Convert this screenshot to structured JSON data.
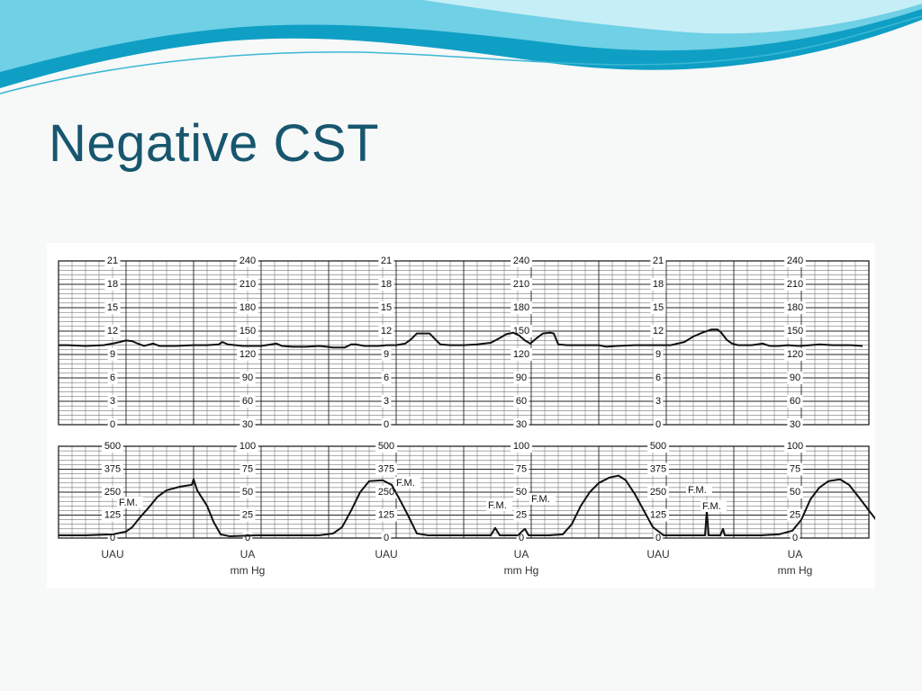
{
  "slide": {
    "title": "Negative CST",
    "accent_color": "#17566e",
    "background_color": "#f7f8f8",
    "wave_colors": [
      "#0f9fc4",
      "#6fd0e6",
      "#c6eef6"
    ]
  },
  "chart_data": {
    "type": "line",
    "fhr_panel": {
      "scale_sets": [
        {
          "left": [
            "21",
            "18",
            "15",
            "12",
            "9",
            "6",
            "3",
            "0"
          ],
          "right": [
            "240",
            "210",
            "180",
            "150",
            "120",
            "90",
            "60",
            "30"
          ]
        },
        {
          "left": [
            "21",
            "18",
            "15",
            "12",
            "9",
            "6",
            "3",
            "0"
          ],
          "right": [
            "240",
            "210",
            "180",
            "150",
            "120",
            "90",
            "60",
            "30"
          ]
        },
        {
          "left": [
            "21",
            "18",
            "15",
            "12",
            "9",
            "6",
            "3",
            "0"
          ],
          "right": [
            "240",
            "210",
            "180",
            "150",
            "120",
            "90",
            "60",
            "30"
          ]
        }
      ],
      "ylim": [
        30,
        240
      ],
      "grid": true,
      "series": [
        {
          "values": [
            [
              0,
              132
            ],
            [
              10,
              132
            ],
            [
              30,
              131
            ],
            [
              50,
              132
            ],
            [
              60,
              134
            ],
            [
              68,
              136
            ],
            [
              75,
              138
            ],
            [
              82,
              137
            ],
            [
              88,
              134
            ],
            [
              95,
              131
            ],
            [
              105,
              134
            ],
            [
              112,
              131
            ],
            [
              130,
              131
            ],
            [
              150,
              132
            ],
            [
              165,
              132
            ],
            [
              178,
              133
            ],
            [
              182,
              136
            ],
            [
              188,
              133
            ],
            [
              205,
              131
            ],
            [
              225,
              131
            ],
            [
              242,
              134
            ],
            [
              248,
              131
            ],
            [
              260,
              130
            ],
            [
              275,
              130
            ],
            [
              290,
              131
            ],
            [
              305,
              129
            ],
            [
              318,
              129
            ],
            [
              325,
              133
            ],
            [
              330,
              133
            ],
            [
              340,
              131
            ],
            [
              355,
              131
            ],
            [
              365,
              132
            ],
            [
              375,
              132
            ],
            [
              385,
              134
            ],
            [
              392,
              140
            ],
            [
              398,
              147
            ],
            [
              406,
              147
            ],
            [
              412,
              147
            ],
            [
              418,
              140
            ],
            [
              424,
              133
            ],
            [
              435,
              132
            ],
            [
              450,
              132
            ],
            [
              465,
              133
            ],
            [
              480,
              135
            ],
            [
              490,
              141
            ],
            [
              497,
              146
            ],
            [
              505,
              148
            ],
            [
              512,
              144
            ],
            [
              518,
              138
            ],
            [
              524,
              134
            ],
            [
              530,
              140
            ],
            [
              538,
              147
            ],
            [
              546,
              148
            ],
            [
              550,
              147
            ],
            [
              555,
              133
            ],
            [
              565,
              132
            ],
            [
              580,
              132
            ],
            [
              600,
              132
            ],
            [
              608,
              130
            ],
            [
              620,
              131
            ],
            [
              640,
              132
            ],
            [
              660,
              132
            ],
            [
              680,
              132
            ],
            [
              695,
              136
            ],
            [
              705,
              143
            ],
            [
              715,
              148
            ],
            [
              725,
              152
            ],
            [
              732,
              152
            ],
            [
              736,
              148
            ],
            [
              742,
              139
            ],
            [
              748,
              134
            ],
            [
              755,
              132
            ],
            [
              770,
              132
            ],
            [
              782,
              134
            ],
            [
              790,
              131
            ],
            [
              800,
              131
            ],
            [
              810,
              132
            ],
            [
              822,
              131
            ],
            [
              835,
              132
            ],
            [
              845,
              133
            ],
            [
              860,
              132
            ],
            [
              880,
              132
            ],
            [
              893,
              131
            ]
          ]
        }
      ]
    },
    "ua_panel": {
      "scale_sets": [
        {
          "left": [
            "500",
            "375",
            "250",
            "125",
            "0"
          ],
          "right": [
            "100",
            "75",
            "50",
            "25",
            "0"
          ]
        },
        {
          "left": [
            "500",
            "375",
            "250",
            "125",
            "0"
          ],
          "right": [
            "100",
            "75",
            "50",
            "25",
            "0"
          ]
        },
        {
          "left": [
            "500",
            "375",
            "250",
            "125",
            "0"
          ],
          "right": [
            "100",
            "75",
            "50",
            "25",
            "0"
          ]
        }
      ],
      "ylim": [
        0,
        100
      ],
      "grid": true,
      "series": [
        {
          "values": [
            [
              0,
              3
            ],
            [
              30,
              3
            ],
            [
              60,
              4
            ],
            [
              75,
              7
            ],
            [
              82,
              12
            ],
            [
              90,
              22
            ],
            [
              100,
              33
            ],
            [
              110,
              45
            ],
            [
              120,
              52
            ],
            [
              135,
              56
            ],
            [
              148,
              58
            ],
            [
              150,
              64
            ],
            [
              154,
              52
            ],
            [
              165,
              35
            ],
            [
              172,
              18
            ],
            [
              180,
              4
            ],
            [
              190,
              2
            ],
            [
              220,
              3
            ],
            [
              260,
              3
            ],
            [
              290,
              3
            ],
            [
              305,
              5
            ],
            [
              315,
              12
            ],
            [
              325,
              30
            ],
            [
              335,
              50
            ],
            [
              345,
              62
            ],
            [
              360,
              63
            ],
            [
              370,
              58
            ],
            [
              380,
              40
            ],
            [
              388,
              25
            ],
            [
              398,
              5
            ],
            [
              410,
              3
            ],
            [
              440,
              3
            ],
            [
              470,
              3
            ],
            [
              480,
              3
            ],
            [
              485,
              11
            ],
            [
              490,
              3
            ],
            [
              510,
              3
            ],
            [
              518,
              10
            ],
            [
              522,
              3
            ],
            [
              545,
              3
            ],
            [
              560,
              4
            ],
            [
              570,
              15
            ],
            [
              580,
              35
            ],
            [
              590,
              50
            ],
            [
              600,
              60
            ],
            [
              612,
              66
            ],
            [
              622,
              68
            ],
            [
              630,
              63
            ],
            [
              640,
              48
            ],
            [
              650,
              30
            ],
            [
              660,
              12
            ],
            [
              672,
              3
            ],
            [
              700,
              3
            ],
            [
              718,
              3
            ],
            [
              720,
              30
            ],
            [
              722,
              3
            ],
            [
              735,
              3
            ],
            [
              738,
              10
            ],
            [
              740,
              3
            ],
            [
              780,
              3
            ],
            [
              800,
              4
            ],
            [
              815,
              8
            ],
            [
              825,
              20
            ],
            [
              835,
              42
            ],
            [
              845,
              55
            ],
            [
              855,
              62
            ],
            [
              868,
              64
            ],
            [
              878,
              58
            ],
            [
              890,
              43
            ],
            [
              900,
              30
            ],
            [
              908,
              20
            ],
            [
              914,
              8
            ],
            [
              920,
              6
            ]
          ]
        }
      ],
      "annotations": [
        "F.M.",
        "F.M.",
        "F.M.",
        "F.M.",
        "F.M.",
        "F.M."
      ]
    },
    "bottom_labels": [
      "UAU",
      "UA",
      "mm Hg",
      "UAU",
      "UA",
      "mm Hg",
      "UAU",
      "UA",
      "mm Hg"
    ]
  }
}
